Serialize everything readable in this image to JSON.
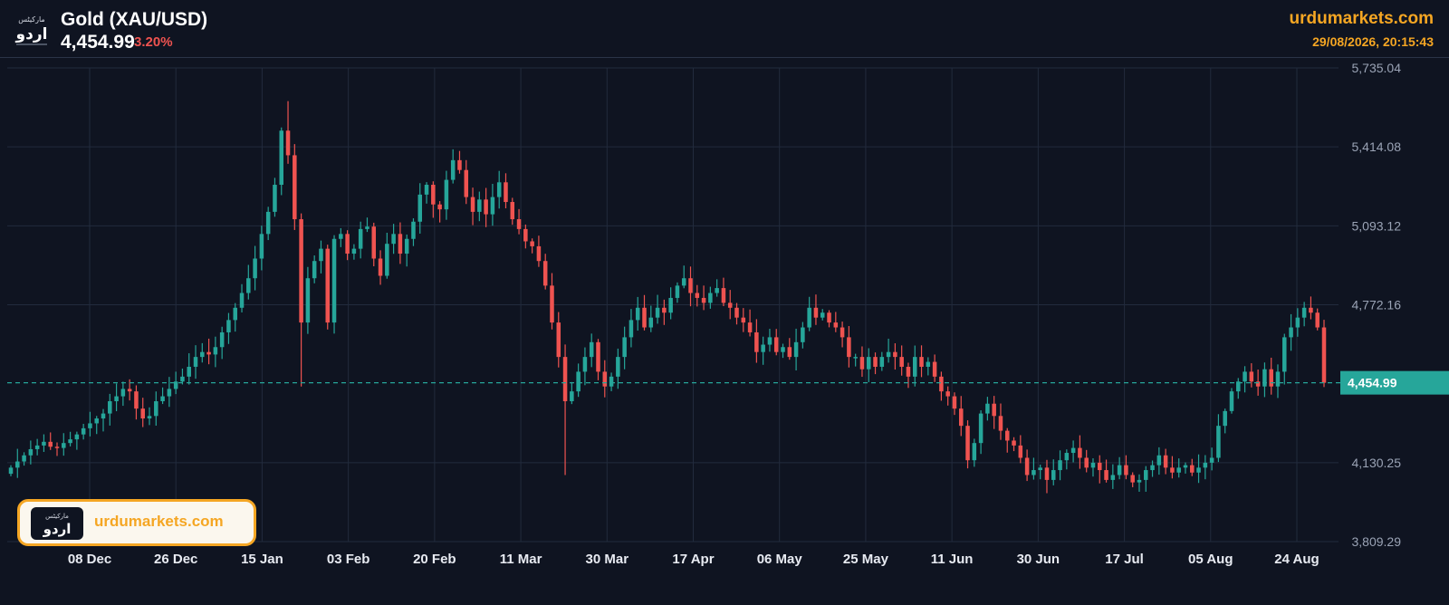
{
  "header": {
    "title": "Gold (XAU/USD)",
    "price": "4,454.99",
    "change": "3.20%",
    "site": "urdumarkets.com",
    "timestamp": "29/08/2026, 20:15:43"
  },
  "logo": {
    "text": "اردو",
    "subtext": "مارکیٹس"
  },
  "badge": {
    "text": "urdumarkets.com"
  },
  "chart_data": {
    "type": "candlestick",
    "y_ticks": [
      "5,735.04",
      "5,414.08",
      "5,093.12",
      "4,772.16",
      "4,454.99",
      "4,130.25",
      "3,809.29"
    ],
    "y_tick_values": [
      5735.04,
      5414.08,
      5093.12,
      4772.16,
      4130.25,
      3809.29
    ],
    "ylim": [
      3809.29,
      5735.04
    ],
    "x_ticks": [
      "08 Dec",
      "26 Dec",
      "15 Jan",
      "03 Feb",
      "20 Feb",
      "11 Mar",
      "30 Mar",
      "17 Apr",
      "06 May",
      "25 May",
      "11 Jun",
      "30 Jun",
      "17 Jul",
      "05 Aug",
      "24 Aug"
    ],
    "last_price": {
      "value": 4454.99,
      "label": "4,454.99"
    },
    "colors": {
      "up": "#26a69a",
      "down": "#ef5350",
      "grid": "#222b3d",
      "last": "#26a69a"
    },
    "grid": true,
    "closes": [
      4110,
      4135,
      4160,
      4185,
      4200,
      4215,
      4195,
      4190,
      4210,
      4225,
      4245,
      4270,
      4290,
      4310,
      4330,
      4380,
      4400,
      4430,
      4420,
      4350,
      4310,
      4320,
      4380,
      4400,
      4430,
      4460,
      4480,
      4520,
      4560,
      4580,
      4570,
      4600,
      4660,
      4710,
      4760,
      4820,
      4880,
      4960,
      5060,
      5150,
      5260,
      5480,
      5380,
      5120,
      4700,
      4880,
      4950,
      5000,
      4700,
      5040,
      5060,
      4980,
      5000,
      5080,
      5090,
      4960,
      4890,
      5020,
      5060,
      4980,
      5040,
      5110,
      5220,
      5260,
      5180,
      5160,
      5280,
      5360,
      5320,
      5210,
      5150,
      5200,
      5140,
      5210,
      5270,
      5190,
      5120,
      5080,
      5030,
      5010,
      4950,
      4850,
      4700,
      4560,
      4380,
      4420,
      4500,
      4560,
      4620,
      4500,
      4440,
      4480,
      4560,
      4640,
      4710,
      4760,
      4680,
      4720,
      4760,
      4740,
      4800,
      4850,
      4880,
      4820,
      4800,
      4780,
      4820,
      4840,
      4780,
      4760,
      4720,
      4700,
      4660,
      4580,
      4610,
      4640,
      4580,
      4600,
      4560,
      4620,
      4680,
      4760,
      4720,
      4740,
      4700,
      4680,
      4640,
      4560,
      4560,
      4510,
      4560,
      4520,
      4560,
      4580,
      4560,
      4520,
      4480,
      4560,
      4520,
      4540,
      4480,
      4420,
      4400,
      4350,
      4280,
      4140,
      4210,
      4330,
      4370,
      4320,
      4260,
      4220,
      4200,
      4150,
      4080,
      4100,
      4110,
      4060,
      4100,
      4140,
      4170,
      4190,
      4150,
      4110,
      4130,
      4100,
      4060,
      4080,
      4120,
      4080,
      4050,
      4060,
      4100,
      4120,
      4160,
      4110,
      4090,
      4110,
      4120,
      4090,
      4110,
      4130,
      4150,
      4280,
      4340,
      4420,
      4460,
      4500,
      4460,
      4440,
      4510,
      4440,
      4500,
      4640,
      4680,
      4720,
      4760,
      4740,
      4680,
      4454.99
    ]
  }
}
